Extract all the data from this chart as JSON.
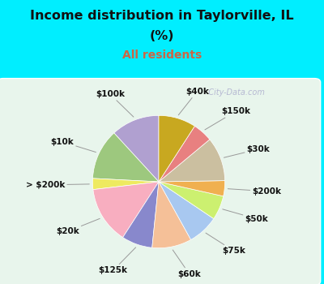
{
  "title_line1": "Income distribution in Taylorville, IL",
  "title_line2": "(%)",
  "subtitle": "All residents",
  "title_color": "#111111",
  "subtitle_color": "#cc6644",
  "bg_cyan": "#00eeff",
  "bg_chart": "#e8f5ec",
  "watermark": "City-Data.com",
  "labels": [
    "$100k",
    "$10k",
    "> $200k",
    "$20k",
    "$125k",
    "$60k",
    "$75k",
    "$50k",
    "$200k",
    "$30k",
    "$150k",
    "$40k"
  ],
  "values": [
    11.0,
    11.5,
    2.5,
    13.0,
    7.0,
    9.0,
    7.0,
    5.5,
    3.5,
    10.0,
    4.5,
    8.5
  ],
  "colors": [
    "#b0a0d0",
    "#9dc87e",
    "#eeea60",
    "#f8aec0",
    "#8888cc",
    "#f5c098",
    "#a8c8f0",
    "#ccf070",
    "#f0b050",
    "#cbbfa0",
    "#e88080",
    "#c8a820"
  ],
  "startangle": 90,
  "figsize": [
    4.0,
    3.5
  ],
  "dpi": 100
}
